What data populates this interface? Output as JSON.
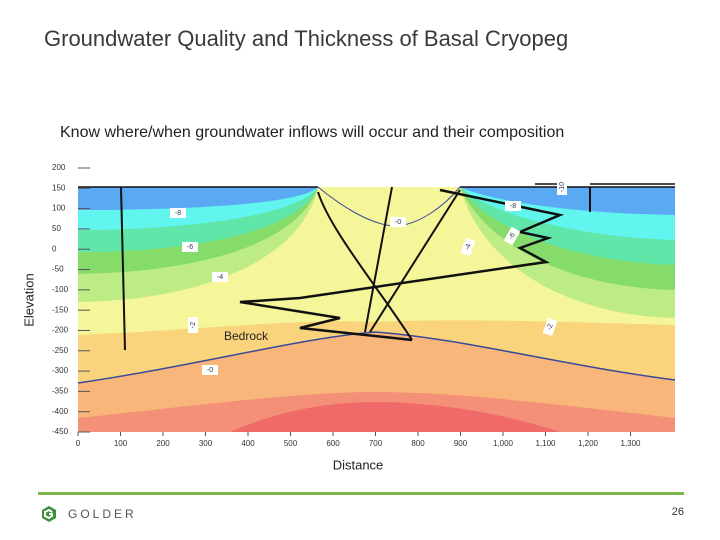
{
  "title": "Groundwater Quality and Thickness of Basal Cryopeg",
  "subtitle": "Know where/when groundwater inflows will occur and their composition",
  "logo": "GOLDER",
  "page_number": "26",
  "chart_data": {
    "type": "contour",
    "xlabel": "Distance",
    "ylabel": "Elevation",
    "xlim": [
      0,
      1400
    ],
    "ylim": [
      -450,
      200
    ],
    "xticks": [
      0,
      100,
      200,
      300,
      400,
      500,
      600,
      700,
      800,
      900,
      {
        "value": 1000,
        "label": "1,000"
      },
      {
        "value": 1100,
        "label": "1,100"
      },
      {
        "value": 1200,
        "label": "1,200"
      },
      {
        "value": 1300,
        "label": "1,300"
      }
    ],
    "yticks": [
      200,
      150,
      100,
      50,
      0,
      -50,
      -100,
      -150,
      -200,
      -250,
      -300,
      -350,
      -400,
      -450
    ],
    "annotations": [
      "-10",
      "-8",
      "-6",
      "-4",
      "-2",
      "-0",
      "-0",
      "-4",
      "-6",
      "-8",
      "-2",
      "Bedrock"
    ]
  }
}
